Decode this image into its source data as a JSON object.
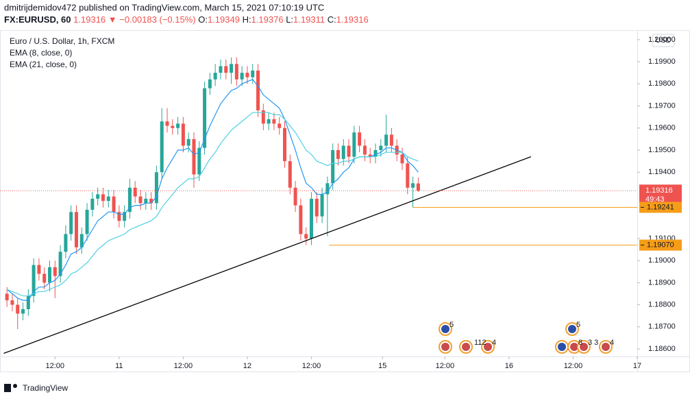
{
  "header": {
    "byline": "dmitrijdemidov472 published on TradingView.com, March 15, 2021 07:10:19 UTC",
    "symbol": "FX:EURUSD, 60",
    "last": "1.19316",
    "change": "▼ −0.00183 (−0.15%)",
    "ohlc": [
      {
        "label": "O:",
        "value": "1.19349"
      },
      {
        "label": "H:",
        "value": "1.19376"
      },
      {
        "label": "L:",
        "value": "1.19311"
      },
      {
        "label": "C:",
        "value": "1.19316"
      }
    ]
  },
  "footer": {
    "brand": "TradingView"
  },
  "chart_data": {
    "type": "candlestick",
    "title": "Euro / U.S. Dollar, 1h, FXCM",
    "currency": "USD",
    "up_color": "#26a69a",
    "down_color": "#ef5350",
    "open": [
      1.1885,
      1.1882,
      1.188,
      1.1876,
      1.1878,
      1.1884,
      1.1898,
      1.1894,
      1.189,
      1.1897,
      1.1893,
      1.1904,
      1.1912,
      1.1922,
      1.1906,
      1.1912,
      1.1923,
      1.1928,
      1.193,
      1.1927,
      1.1929,
      1.1922,
      1.1918,
      1.1922,
      1.1933,
      1.1929,
      1.1926,
      1.1928,
      1.1926,
      1.194,
      1.1963,
      1.1961,
      1.196,
      1.1962,
      1.1952,
      1.1955,
      1.1939,
      1.1951,
      1.1978,
      1.1982,
      1.1985,
      1.1988,
      1.1985,
      1.1989,
      1.1982,
      1.1985,
      1.1983,
      1.1986,
      1.1968,
      1.1962,
      1.1964,
      1.1962,
      1.196,
      1.1945,
      1.1933,
      1.1925,
      1.1912,
      1.191,
      1.1928,
      1.192,
      1.193,
      1.1935,
      1.195,
      1.1946,
      1.1952,
      1.1947,
      1.1958,
      1.1952,
      1.1948,
      1.1947,
      1.195,
      1.1952,
      1.1957,
      1.1952,
      1.1948,
      1.1944,
      1.1933,
      1.19349
    ],
    "high": [
      1.1888,
      1.1885,
      1.1883,
      1.1881,
      1.1887,
      1.1901,
      1.1901,
      1.1897,
      1.19,
      1.19,
      1.1907,
      1.1916,
      1.1925,
      1.1925,
      1.1915,
      1.1926,
      1.1931,
      1.1933,
      1.1933,
      1.1932,
      1.1932,
      1.1925,
      1.1925,
      1.1937,
      1.1936,
      1.1932,
      1.1931,
      1.1931,
      1.1943,
      1.1969,
      1.1969,
      1.1964,
      1.1965,
      1.1965,
      1.1958,
      1.1958,
      1.1954,
      1.1981,
      1.1985,
      1.1989,
      1.1991,
      1.1991,
      1.1992,
      1.1992,
      1.1988,
      1.1988,
      1.1989,
      1.1989,
      1.1971,
      1.1967,
      1.1967,
      1.1965,
      1.1963,
      1.1948,
      1.1936,
      1.1928,
      1.1915,
      1.1931,
      1.1931,
      1.1933,
      1.1938,
      1.1953,
      1.1953,
      1.1955,
      1.1955,
      1.1961,
      1.1961,
      1.1955,
      1.1951,
      1.1953,
      1.1955,
      1.1966,
      1.196,
      1.1955,
      1.1951,
      1.1947,
      1.1938,
      1.19376
    ],
    "low": [
      1.1879,
      1.1877,
      1.1869,
      1.1873,
      1.1875,
      1.1881,
      1.1891,
      1.1887,
      1.1886,
      1.1883,
      1.189,
      1.1901,
      1.1909,
      1.1903,
      1.1903,
      1.1909,
      1.192,
      1.1925,
      1.1924,
      1.1924,
      1.1919,
      1.1915,
      1.1915,
      1.1919,
      1.1926,
      1.1923,
      1.1923,
      1.1923,
      1.1923,
      1.1937,
      1.1958,
      1.1957,
      1.1957,
      1.1949,
      1.1949,
      1.1933,
      1.1936,
      1.1948,
      1.1975,
      1.1979,
      1.1982,
      1.1982,
      1.198,
      1.1979,
      1.1979,
      1.198,
      1.198,
      1.1965,
      1.1959,
      1.1959,
      1.1959,
      1.1957,
      1.1942,
      1.193,
      1.1922,
      1.1909,
      1.1907,
      1.1907,
      1.1917,
      1.1917,
      1.1911,
      1.1932,
      1.1943,
      1.1943,
      1.1944,
      1.1944,
      1.1949,
      1.1945,
      1.1944,
      1.1944,
      1.1947,
      1.1949,
      1.1949,
      1.1945,
      1.1941,
      1.193,
      1.1924,
      1.19311
    ],
    "close": [
      1.1882,
      1.188,
      1.1876,
      1.1878,
      1.1884,
      1.1898,
      1.1894,
      1.189,
      1.1897,
      1.1893,
      1.1904,
      1.1912,
      1.1922,
      1.1906,
      1.1912,
      1.1923,
      1.1928,
      1.193,
      1.1927,
      1.1929,
      1.1922,
      1.1918,
      1.1922,
      1.1933,
      1.1929,
      1.1926,
      1.1928,
      1.1926,
      1.194,
      1.1963,
      1.1961,
      1.196,
      1.1962,
      1.1952,
      1.1955,
      1.1939,
      1.1951,
      1.1978,
      1.1982,
      1.1985,
      1.1988,
      1.1985,
      1.1989,
      1.1982,
      1.1985,
      1.1983,
      1.1986,
      1.1968,
      1.1962,
      1.1964,
      1.1962,
      1.196,
      1.1945,
      1.1933,
      1.1925,
      1.1912,
      1.191,
      1.1928,
      1.192,
      1.193,
      1.1935,
      1.195,
      1.1946,
      1.1952,
      1.1947,
      1.1958,
      1.1952,
      1.1948,
      1.1947,
      1.195,
      1.1952,
      1.1957,
      1.1952,
      1.1948,
      1.1944,
      1.1933,
      1.1935,
      1.19316
    ],
    "series": [
      {
        "name": "EMA (8, close, 0)",
        "color": "#2196f3",
        "values": [
          1.1887,
          1.1885,
          1.1883,
          1.1882,
          1.1882,
          1.1886,
          1.1888,
          1.1888,
          1.189,
          1.1891,
          1.1894,
          1.1898,
          1.1903,
          1.1904,
          1.1906,
          1.191,
          1.1914,
          1.1918,
          1.192,
          1.1922,
          1.1922,
          1.1921,
          1.1921,
          1.1924,
          1.1925,
          1.1925,
          1.1926,
          1.1926,
          1.1929,
          1.1937,
          1.1942,
          1.1946,
          1.195,
          1.195,
          1.1951,
          1.1948,
          1.1949,
          1.1955,
          1.1961,
          1.1966,
          1.1971,
          1.1974,
          1.1977,
          1.1978,
          1.198,
          1.1981,
          1.1982,
          1.1979,
          1.1975,
          1.1973,
          1.1971,
          1.1969,
          1.1964,
          1.1957,
          1.195,
          1.1942,
          1.1935,
          1.1933,
          1.193,
          1.193,
          1.1931,
          1.1935,
          1.1937,
          1.194,
          1.1942,
          1.1946,
          1.1947,
          1.1947,
          1.1947,
          1.1948,
          1.1949,
          1.1951,
          1.1951,
          1.195,
          1.1949,
          1.1945,
          1.1943,
          1.194
        ]
      },
      {
        "name": "EMA (21, close, 0)",
        "color": "#4dd0e1",
        "values": [
          1.1887,
          1.1886,
          1.1885,
          1.1884,
          1.1884,
          1.1885,
          1.1886,
          1.1886,
          1.1887,
          1.1888,
          1.1889,
          1.1891,
          1.1894,
          1.1895,
          1.1897,
          1.1899,
          1.1902,
          1.1905,
          1.1907,
          1.1909,
          1.191,
          1.1911,
          1.1912,
          1.1914,
          1.1915,
          1.1916,
          1.1917,
          1.1918,
          1.192,
          1.1924,
          1.1927,
          1.193,
          1.1933,
          1.1935,
          1.1937,
          1.1937,
          1.1938,
          1.1942,
          1.1946,
          1.1949,
          1.1953,
          1.1956,
          1.1959,
          1.1961,
          1.1963,
          1.1965,
          1.1967,
          1.1967,
          1.1967,
          1.1967,
          1.1966,
          1.1966,
          1.1964,
          1.1961,
          1.1958,
          1.1954,
          1.195,
          1.1948,
          1.1945,
          1.1944,
          1.1943,
          1.1944,
          1.1944,
          1.1945,
          1.1945,
          1.1946,
          1.1947,
          1.1947,
          1.1947,
          1.1947,
          1.1948,
          1.1949,
          1.1949,
          1.1949,
          1.1949,
          1.1947,
          1.1946,
          1.1945
        ]
      }
    ],
    "xlim": [
      -1.3,
      118
    ],
    "xticks": [
      {
        "value": 9,
        "label": "12:00"
      },
      {
        "value": 21,
        "label": "11"
      },
      {
        "value": 33,
        "label": "12:00"
      },
      {
        "value": 45,
        "label": "12"
      },
      {
        "value": 57,
        "label": "12:00"
      },
      {
        "value": 70.3,
        "label": "15"
      },
      {
        "value": 82,
        "label": "12:00"
      },
      {
        "value": 94,
        "label": "16"
      },
      {
        "value": 106,
        "label": "12:00"
      },
      {
        "value": 118,
        "label": "17"
      }
    ],
    "ylim": [
      1.18566,
      1.20043
    ],
    "yticks": [
      {
        "value": 1.186,
        "label": "1.18600"
      },
      {
        "value": 1.187,
        "label": "1.18700"
      },
      {
        "value": 1.188,
        "label": "1.18800"
      },
      {
        "value": 1.189,
        "label": "1.18900"
      },
      {
        "value": 1.19,
        "label": "1.19000"
      },
      {
        "value": 1.191,
        "label": "1.19100"
      },
      {
        "value": 1.194,
        "label": "1.19400"
      },
      {
        "value": 1.195,
        "label": "1.19500"
      },
      {
        "value": 1.196,
        "label": "1.19600"
      },
      {
        "value": 1.197,
        "label": "1.19700"
      },
      {
        "value": 1.198,
        "label": "1.19800"
      },
      {
        "value": 1.199,
        "label": "1.19900"
      },
      {
        "value": 1.2,
        "label": "1.20000"
      }
    ],
    "trendline": {
      "x": [
        -0.6,
        98.1
      ],
      "y": [
        1.1858,
        1.1947
      ],
      "color": "#000000"
    },
    "hlines": [
      {
        "value": 1.19241,
        "start": 76,
        "color": "#f59d19"
      },
      {
        "value": 1.1907,
        "start": 60.3,
        "color": "#f59d19"
      }
    ],
    "price_tags": [
      {
        "value": 1.19316,
        "label": "1.19316",
        "countdown": "49:43",
        "color": "#ef5350"
      },
      {
        "value": 1.19241,
        "label": "1.19241",
        "color": "#f59d19"
      },
      {
        "value": 1.1907,
        "label": "1.19070",
        "color": "#f59d19"
      }
    ],
    "events": [
      "5",
      "112",
      "4",
      "5",
      "8",
      "3 3",
      "4"
    ]
  }
}
